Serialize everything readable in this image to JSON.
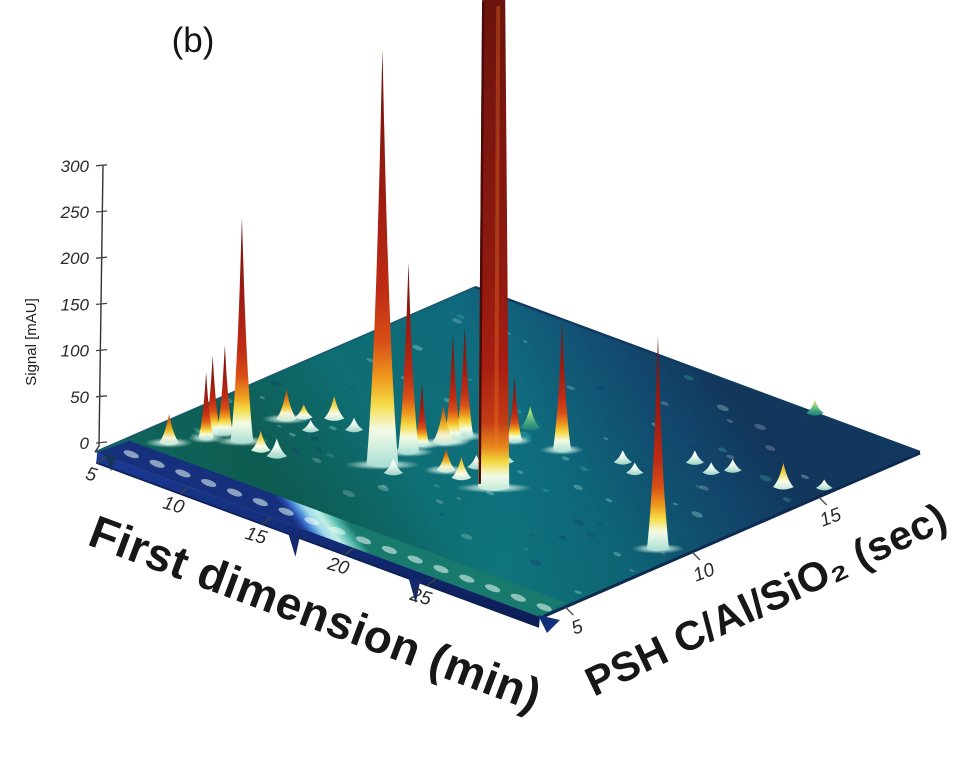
{
  "figure": {
    "panel_label": "(b)",
    "background_color": "#ffffff",
    "description": "3D surface plot of a comprehensive two-dimensional liquid chromatography separation, jet colormap"
  },
  "chart_data": {
    "type": "surface",
    "title": "",
    "xlabel": "First dimension (min)",
    "ylabel": "PSH C/Al/SiO₂ (sec)",
    "zlabel": "Signal [mAU]",
    "x_ticks": [
      5,
      10,
      15,
      20,
      25
    ],
    "y_ticks": [
      5,
      10,
      15
    ],
    "z_ticks": [
      0,
      50,
      100,
      150,
      200,
      250,
      300
    ],
    "x_range": [
      4,
      29
    ],
    "y_range": [
      4,
      19
    ],
    "z_range": [
      0,
      300
    ],
    "colormap": "jet",
    "grid": false,
    "legend": "none",
    "baseline_ridge": {
      "along": "x",
      "y_center_sec": 4.7,
      "height_mAU": 15,
      "description": "raised solvent/injection ridge running along the first-dimension axis at low second-dimension time"
    },
    "negative_dips": [
      {
        "x_min": 16.4,
        "depth_mAU": 24
      },
      {
        "x_min": 23.7,
        "depth_mAU": 26
      }
    ],
    "tallest_peak_clipped_at_top": true,
    "peaks": [
      {
        "x": 5.6,
        "y": 5.8,
        "z": 31,
        "t": "orange"
      },
      {
        "x": 6.4,
        "y": 6.7,
        "z": 71,
        "t": "red"
      },
      {
        "x": 6.2,
        "y": 7.1,
        "z": 83,
        "t": "red"
      },
      {
        "x": 6.6,
        "y": 7.3,
        "z": 95,
        "t": "red"
      },
      {
        "x": 7.7,
        "y": 7.2,
        "z": 242,
        "t": "red"
      },
      {
        "x": 7.5,
        "y": 9.1,
        "z": 32,
        "t": "orange"
      },
      {
        "x": 7.9,
        "y": 9.5,
        "z": 14,
        "t": "yellow"
      },
      {
        "x": 8.9,
        "y": 7.1,
        "z": 21,
        "t": "yellow"
      },
      {
        "x": 9.8,
        "y": 7.1,
        "z": 19,
        "t": "white"
      },
      {
        "x": 8.9,
        "y": 10.0,
        "z": 24,
        "t": "yellow"
      },
      {
        "x": 9.0,
        "y": 9.0,
        "z": 11,
        "t": "white"
      },
      {
        "x": 10.3,
        "y": 9.8,
        "z": 13,
        "t": "white"
      },
      {
        "x": 13.6,
        "y": 8.6,
        "z": 450,
        "t": "red"
      },
      {
        "x": 13.5,
        "y": 9.7,
        "z": 205,
        "t": "red"
      },
      {
        "x": 13.4,
        "y": 10.3,
        "z": 67,
        "t": "red"
      },
      {
        "x": 13.9,
        "y": 10.8,
        "z": 40,
        "t": "orange"
      },
      {
        "x": 14.0,
        "y": 11.1,
        "z": 113,
        "t": "red"
      },
      {
        "x": 14.1,
        "y": 11.5,
        "z": 118,
        "t": "red"
      },
      {
        "x": 18.6,
        "y": 9.5,
        "z": 530,
        "t": "column"
      },
      {
        "x": 15.9,
        "y": 9.5,
        "z": 23,
        "t": "orange"
      },
      {
        "x": 16.9,
        "y": 9.4,
        "z": 22,
        "t": "yellow"
      },
      {
        "x": 15.9,
        "y": 12.2,
        "z": 69,
        "t": "red"
      },
      {
        "x": 15.5,
        "y": 13.1,
        "z": 23,
        "t": "green"
      },
      {
        "x": 18.0,
        "y": 12.6,
        "z": 139,
        "t": "red"
      },
      {
        "x": 14.5,
        "y": 8.4,
        "z": 16,
        "t": "white"
      },
      {
        "x": 16.6,
        "y": 10.2,
        "z": 13,
        "t": "white"
      },
      {
        "x": 17.1,
        "y": 11.0,
        "z": 11,
        "t": "white"
      },
      {
        "x": 27.8,
        "y": 9.5,
        "z": 230,
        "t": "red"
      },
      {
        "x": 27.3,
        "y": 14.8,
        "z": 26,
        "t": "yellow"
      },
      {
        "x": 20.7,
        "y": 13.1,
        "z": 13,
        "t": "white"
      },
      {
        "x": 21.8,
        "y": 12.8,
        "z": 11,
        "t": "white"
      },
      {
        "x": 22.9,
        "y": 14.4,
        "z": 13,
        "t": "white"
      },
      {
        "x": 24.1,
        "y": 14.2,
        "z": 11,
        "t": "white"
      },
      {
        "x": 24.6,
        "y": 14.7,
        "z": 12,
        "t": "white"
      },
      {
        "x": 23.1,
        "y": 19.0,
        "z": 14,
        "t": "green"
      },
      {
        "x": 28.6,
        "y": 15.5,
        "z": 9,
        "t": "white"
      }
    ]
  },
  "colors": {
    "plane_teal": "#0f6f7b",
    "plane_navy": "#163f66",
    "ridge_cyan": "#b9ece2",
    "ridge_blue": "#1c3f9e",
    "peak_dark_red": "#7e150e",
    "peak_red": "#a81f12",
    "peak_orange": "#e2711a",
    "peak_yellow": "#f2d73c",
    "peak_white": "#eef8f0",
    "axis_text": "#2a2a2a",
    "label_text": "#171717"
  }
}
